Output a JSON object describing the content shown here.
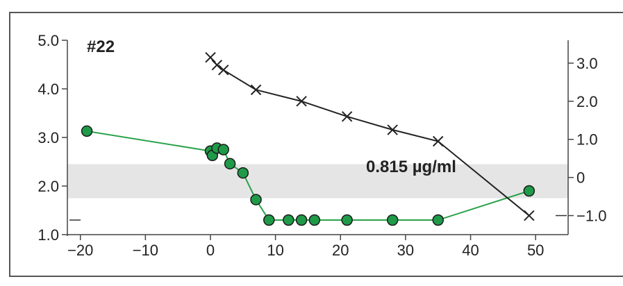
{
  "chart_data": {
    "type": "line",
    "title": "#22",
    "annotation": "0.815 µg/ml",
    "x": {
      "label": "",
      "range": [
        -22,
        55
      ],
      "ticks": [
        -20,
        -10,
        0,
        10,
        20,
        30,
        40,
        50
      ],
      "tick_labels": [
        "−20",
        "−10",
        "0",
        "10",
        "20",
        "30",
        "40",
        "50"
      ]
    },
    "y_left": {
      "label": "",
      "range": [
        1.0,
        5.0
      ],
      "ticks": [
        1.0,
        2.0,
        3.0,
        4.0,
        5.0
      ],
      "tick_labels": [
        "1.0",
        "2.0",
        "3.0",
        "4.0",
        "5.0"
      ]
    },
    "y_right": {
      "label": "",
      "range": [
        -1.5,
        3.6
      ],
      "ticks": [
        -1.0,
        0,
        1.0,
        2.0,
        3.0
      ],
      "tick_labels": [
        "−1.0",
        "0",
        "1.0",
        "2.0",
        "3.0"
      ]
    },
    "band": {
      "axis": "left",
      "y_from": 1.75,
      "y_to": 2.45,
      "color": "#e5e5e5"
    },
    "series": [
      {
        "axis": "left",
        "marker": "circle",
        "color": "#2aa24a",
        "marker_fill": "#1f9a48",
        "points": [
          [
            -19,
            3.13
          ],
          [
            0,
            2.72
          ],
          [
            0.3,
            2.63
          ],
          [
            1,
            2.78
          ],
          [
            2,
            2.75
          ],
          [
            3,
            2.46
          ],
          [
            5,
            2.27
          ],
          [
            7,
            1.72
          ],
          [
            9,
            1.3
          ],
          [
            12,
            1.3
          ],
          [
            14,
            1.3
          ],
          [
            16,
            1.3
          ],
          [
            21,
            1.3
          ],
          [
            28,
            1.3
          ],
          [
            35,
            1.3
          ],
          [
            49,
            1.9
          ]
        ]
      },
      {
        "axis": "right",
        "marker": "x",
        "color": "#222222",
        "points": [
          [
            0,
            3.15
          ],
          [
            1,
            2.95
          ],
          [
            2,
            2.82
          ],
          [
            7,
            2.3
          ],
          [
            14,
            2.0
          ],
          [
            21,
            1.6
          ],
          [
            28,
            1.25
          ],
          [
            35,
            0.95
          ],
          [
            49,
            -1.0
          ]
        ]
      }
    ],
    "grid": false,
    "legend": "none"
  }
}
